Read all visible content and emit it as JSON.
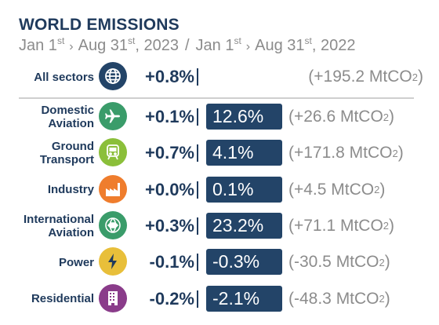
{
  "header": {
    "title": "WORLD EMISSIONS",
    "period_current": {
      "start_day": "Jan 1",
      "start_sup": "st",
      "end_day": "Aug 31",
      "end_sup": "st",
      "end_year": ", 2023"
    },
    "period_previous": {
      "start_day": "Jan 1",
      "start_sup": "st",
      "end_day": "Aug 31",
      "end_sup": "st",
      "end_year": ", 2022"
    },
    "arrow": "›",
    "slash": "/"
  },
  "all_sectors": {
    "label": "All sectors",
    "icon": "globe-icon",
    "change": "+0.8%",
    "mt": "(+195.2 MtCO",
    "mt_sub": "2",
    "mt_close": ")"
  },
  "sectors": [
    {
      "id": "domestic-aviation",
      "label": "Domestic Aviation",
      "icon": "airplane-icon",
      "color": "#3a9c6a",
      "change": "+0.1%",
      "share": "12.6%",
      "mt": "(+26.6 MtCO",
      "mt_sub": "2",
      "mt_close": ")"
    },
    {
      "id": "ground-transport",
      "label": "Ground Transport",
      "icon": "train-icon",
      "color": "#8bbf3a",
      "change": "+0.7%",
      "share": "4.1%",
      "mt": "(+171.8 MtCO",
      "mt_sub": "2",
      "mt_close": ")"
    },
    {
      "id": "industry",
      "label": "Industry",
      "icon": "factory-icon",
      "color": "#ef7d2d",
      "change": "+0.0%",
      "share": "0.1%",
      "mt": "(+4.5 MtCO",
      "mt_sub": "2",
      "mt_close": ")"
    },
    {
      "id": "international-aviation",
      "label": "International Aviation",
      "icon": "globe-airplane-icon",
      "color": "#3a9c6a",
      "change": "+0.3%",
      "share": "23.2%",
      "mt": "(+71.1 MtCO",
      "mt_sub": "2",
      "mt_close": ")"
    },
    {
      "id": "power",
      "label": "Power",
      "icon": "lightning-icon",
      "color": "#e8bf3a",
      "change": "-0.1%",
      "share": "-0.3%",
      "mt": "(-30.5 MtCO",
      "mt_sub": "2",
      "mt_close": ")"
    },
    {
      "id": "residential",
      "label": "Residential",
      "icon": "building-icon",
      "color": "#8a3c8a",
      "change": "-0.2%",
      "share": "-2.1%",
      "mt": "(-48.3 MtCO",
      "mt_sub": "2",
      "mt_close": ")"
    }
  ],
  "colors": {
    "navy": "#1f3a5c",
    "bar": "#234468",
    "grey": "#8c8c8c"
  }
}
